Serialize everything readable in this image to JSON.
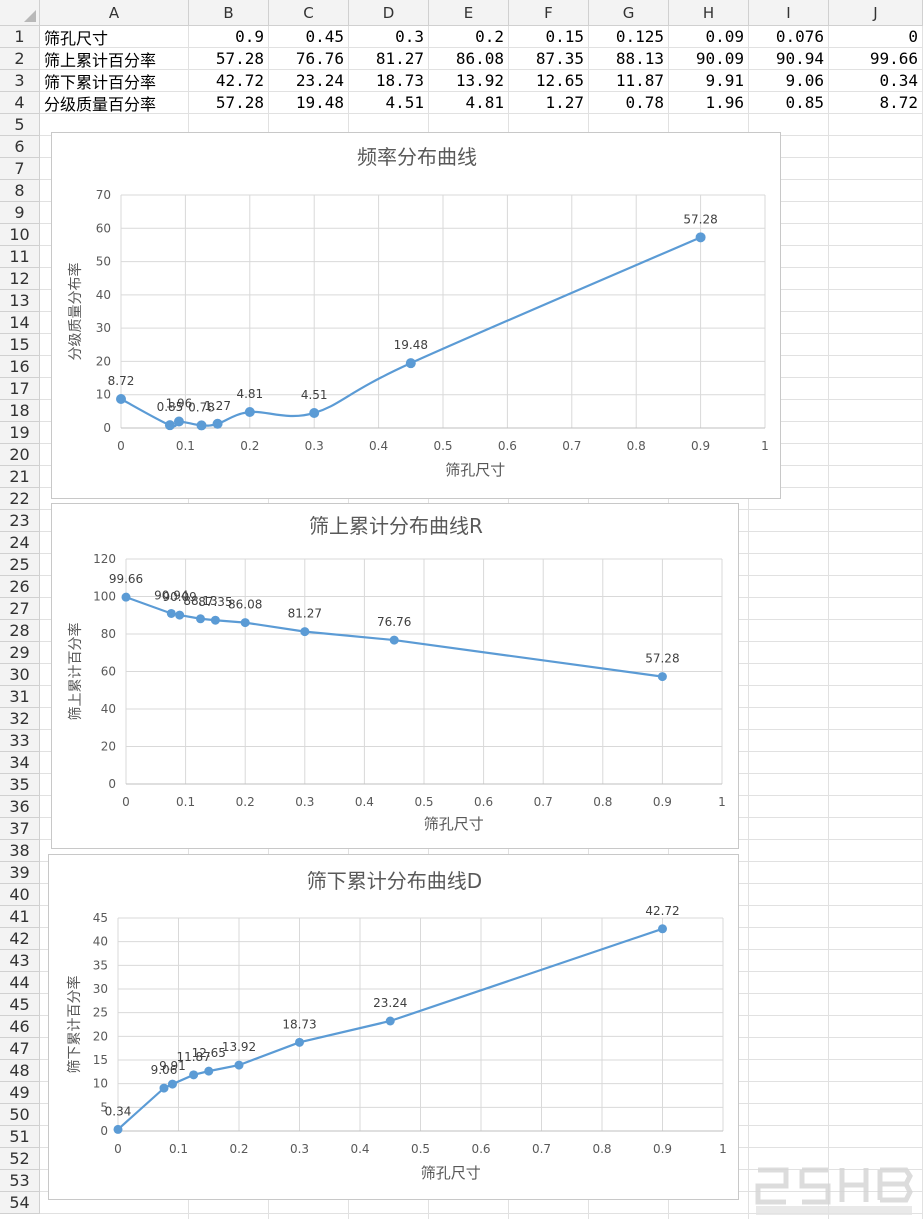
{
  "columns": [
    "A",
    "B",
    "C",
    "D",
    "E",
    "F",
    "G",
    "H",
    "I",
    "J"
  ],
  "rows": [
    "1",
    "2",
    "3",
    "4",
    "5",
    "6",
    "7",
    "8",
    "9",
    "10",
    "11",
    "12",
    "13",
    "14",
    "15",
    "16",
    "17",
    "18",
    "19",
    "20",
    "21",
    "22",
    "23",
    "24",
    "25",
    "26",
    "27",
    "28",
    "29",
    "30",
    "31",
    "32",
    "33",
    "34",
    "35",
    "36",
    "37",
    "38",
    "39",
    "40",
    "41",
    "42",
    "43",
    "44",
    "45",
    "46",
    "47",
    "48",
    "49",
    "50",
    "51",
    "52",
    "53",
    "54"
  ],
  "table": [
    [
      "筛孔尺寸",
      "0.9",
      "0.45",
      "0.3",
      "0.2",
      "0.15",
      "0.125",
      "0.09",
      "0.076",
      "0"
    ],
    [
      "筛上累计百分率",
      "57.28",
      "76.76",
      "81.27",
      "86.08",
      "87.35",
      "88.13",
      "90.09",
      "90.94",
      "99.66"
    ],
    [
      "筛下累计百分率",
      "42.72",
      "23.24",
      "18.73",
      "13.92",
      "12.65",
      "11.87",
      "9.91",
      "9.06",
      "0.34"
    ],
    [
      "分级质量百分率",
      "57.28",
      "19.48",
      "4.51",
      "4.81",
      "1.27",
      "0.78",
      "1.96",
      "0.85",
      "8.72"
    ]
  ],
  "colors": {
    "series": "#5b9bd5",
    "gridline": "#d9d9d9",
    "axis_text": "#595959",
    "title_text": "#595959"
  },
  "chart_data": [
    {
      "type": "scatter",
      "smooth": true,
      "title": "频率分布曲线",
      "xlabel": "筛孔尺寸",
      "ylabel": "分级质量分布率",
      "xlim": [
        0,
        1
      ],
      "ylim": [
        0,
        70
      ],
      "xticks": [
        "0",
        "0.1",
        "0.2",
        "0.3",
        "0.4",
        "0.5",
        "0.6",
        "0.7",
        "0.8",
        "0.9",
        "1"
      ],
      "yticks": [
        "0",
        "10",
        "20",
        "30",
        "40",
        "50",
        "60",
        "70"
      ],
      "x": [
        0,
        0.076,
        0.09,
        0.125,
        0.15,
        0.2,
        0.3,
        0.45,
        0.9
      ],
      "y": [
        8.72,
        0.85,
        1.96,
        0.78,
        1.27,
        4.81,
        4.51,
        19.48,
        57.28
      ],
      "labels": [
        "8.72",
        "0.85",
        "1.96",
        "0.78",
        "1.27",
        "4.81",
        "4.51",
        "19.48",
        "57.28"
      ],
      "grid": true
    },
    {
      "type": "scatter",
      "smooth": false,
      "title": "筛上累计分布曲线R",
      "xlabel": "筛孔尺寸",
      "ylabel": "筛上累计百分率",
      "xlim": [
        0,
        1
      ],
      "ylim": [
        0,
        120
      ],
      "xticks": [
        "0",
        "0.1",
        "0.2",
        "0.3",
        "0.4",
        "0.5",
        "0.6",
        "0.7",
        "0.8",
        "0.9",
        "1"
      ],
      "yticks": [
        "0",
        "20",
        "40",
        "60",
        "80",
        "100",
        "120"
      ],
      "x": [
        0,
        0.076,
        0.09,
        0.125,
        0.15,
        0.2,
        0.3,
        0.45,
        0.9
      ],
      "y": [
        99.66,
        90.94,
        90.09,
        88.13,
        87.35,
        86.08,
        81.27,
        76.76,
        57.28
      ],
      "labels": [
        "99.66",
        "90.94",
        "90.09",
        "88.13",
        "87.35",
        "86.08",
        "81.27",
        "76.76",
        "57.28"
      ],
      "grid": true
    },
    {
      "type": "scatter",
      "smooth": false,
      "title": "筛下累计分布曲线D",
      "xlabel": "筛孔尺寸",
      "ylabel": "筛下累计百分率",
      "xlim": [
        0,
        1
      ],
      "ylim": [
        0,
        45
      ],
      "xticks": [
        "0",
        "0.1",
        "0.2",
        "0.3",
        "0.4",
        "0.5",
        "0.6",
        "0.7",
        "0.8",
        "0.9",
        "1"
      ],
      "yticks": [
        "0",
        "5",
        "10",
        "15",
        "20",
        "25",
        "30",
        "35",
        "40",
        "45"
      ],
      "x": [
        0,
        0.076,
        0.09,
        0.125,
        0.15,
        0.2,
        0.3,
        0.45,
        0.9
      ],
      "y": [
        0.34,
        9.06,
        9.91,
        11.87,
        12.65,
        13.92,
        18.73,
        23.24,
        42.72
      ],
      "labels": [
        "0.34",
        "9.06",
        "9.91",
        "11.87",
        "12.65",
        "13.92",
        "18.73",
        "23.24",
        "42.72"
      ],
      "grid": true
    }
  ]
}
